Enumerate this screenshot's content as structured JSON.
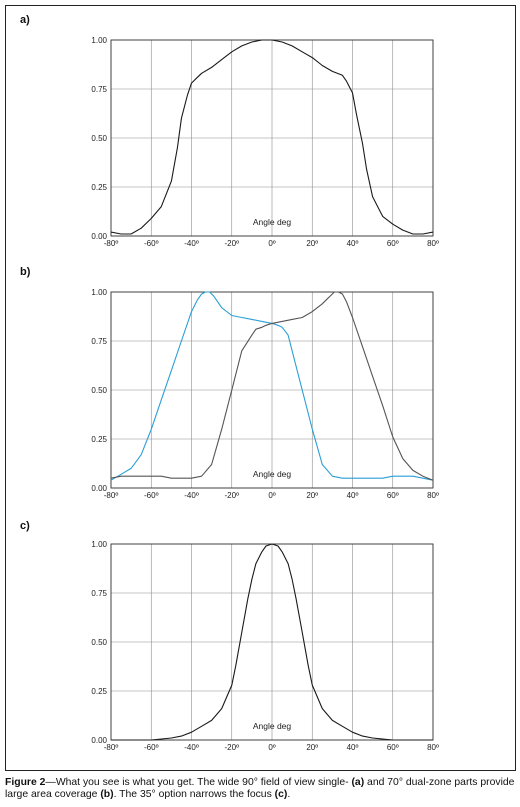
{
  "colors": {
    "grid": "#8c8c8c",
    "axis": "#333333",
    "black_series": "#1a1a1a",
    "gray_series": "#555555",
    "blue_series": "#2a9fd6"
  },
  "chart_data": [
    {
      "panel_label": "a)",
      "type": "line",
      "xlabel": "Angle deg",
      "xlim": [
        -80,
        80
      ],
      "ylim": [
        0,
        1
      ],
      "x_ticks": [
        "-80º",
        "-60º",
        "-40º",
        "-20º",
        "0º",
        "20º",
        "40º",
        "60º",
        "80º"
      ],
      "y_ticks": [
        "0.00",
        "0.25",
        "0.50",
        "0.75",
        "1.00"
      ],
      "grid": true,
      "series": [
        {
          "color": "black_series",
          "x": [
            -80,
            -75,
            -70,
            -65,
            -60,
            -55,
            -50,
            -47,
            -45,
            -42,
            -40,
            -37,
            -35,
            -30,
            -25,
            -20,
            -15,
            -10,
            -5,
            0,
            5,
            10,
            15,
            20,
            25,
            30,
            35,
            37,
            40,
            42,
            45,
            47,
            50,
            55,
            60,
            65,
            70,
            75,
            80
          ],
          "y": [
            0.02,
            0.01,
            0.01,
            0.04,
            0.09,
            0.15,
            0.28,
            0.45,
            0.6,
            0.72,
            0.78,
            0.81,
            0.83,
            0.86,
            0.9,
            0.94,
            0.97,
            0.99,
            1.0,
            1.0,
            0.99,
            0.97,
            0.94,
            0.91,
            0.87,
            0.84,
            0.82,
            0.79,
            0.73,
            0.62,
            0.47,
            0.34,
            0.2,
            0.1,
            0.06,
            0.03,
            0.01,
            0.01,
            0.02
          ]
        }
      ]
    },
    {
      "panel_label": "b)",
      "type": "line",
      "xlabel": "Angle deg",
      "xlim": [
        -80,
        80
      ],
      "ylim": [
        0,
        1
      ],
      "x_ticks": [
        "-80º",
        "-60º",
        "-40º",
        "-20º",
        "0º",
        "20º",
        "40º",
        "60º",
        "80º"
      ],
      "y_ticks": [
        "0.00",
        "0.25",
        "0.50",
        "0.75",
        "1.00"
      ],
      "grid": true,
      "series": [
        {
          "color": "blue_series",
          "x": [
            -80,
            -75,
            -70,
            -65,
            -60,
            -55,
            -50,
            -45,
            -40,
            -37,
            -35,
            -33,
            -31,
            -29,
            -27,
            -25,
            -20,
            -15,
            -10,
            -5,
            0,
            3,
            5,
            8,
            10,
            15,
            20,
            25,
            30,
            35,
            40,
            45,
            50,
            55,
            60,
            65,
            70,
            75,
            80
          ],
          "y": [
            0.04,
            0.07,
            0.1,
            0.17,
            0.3,
            0.45,
            0.6,
            0.75,
            0.9,
            0.96,
            0.99,
            1.0,
            1.0,
            0.98,
            0.95,
            0.92,
            0.88,
            0.87,
            0.86,
            0.85,
            0.84,
            0.83,
            0.82,
            0.78,
            0.7,
            0.5,
            0.3,
            0.12,
            0.06,
            0.05,
            0.05,
            0.05,
            0.05,
            0.05,
            0.06,
            0.06,
            0.06,
            0.05,
            0.04
          ]
        },
        {
          "color": "gray_series",
          "x": [
            -80,
            -75,
            -70,
            -65,
            -60,
            -55,
            -50,
            -45,
            -40,
            -35,
            -30,
            -25,
            -20,
            -15,
            -10,
            -8,
            -5,
            -3,
            0,
            5,
            10,
            15,
            20,
            25,
            27,
            29,
            31,
            33,
            35,
            37,
            40,
            45,
            50,
            55,
            60,
            65,
            70,
            75,
            80
          ],
          "y": [
            0.05,
            0.06,
            0.06,
            0.06,
            0.06,
            0.06,
            0.05,
            0.05,
            0.05,
            0.06,
            0.12,
            0.3,
            0.5,
            0.7,
            0.78,
            0.81,
            0.82,
            0.83,
            0.84,
            0.85,
            0.86,
            0.87,
            0.9,
            0.94,
            0.96,
            0.98,
            1.0,
            1.0,
            0.99,
            0.95,
            0.87,
            0.72,
            0.57,
            0.42,
            0.26,
            0.15,
            0.09,
            0.06,
            0.04
          ]
        }
      ]
    },
    {
      "panel_label": "c)",
      "type": "line",
      "xlabel": "Angle deg",
      "xlim": [
        -80,
        80
      ],
      "ylim": [
        0,
        1
      ],
      "x_ticks": [
        "-80º",
        "-60º",
        "-40º",
        "-20º",
        "0º",
        "20º",
        "40º",
        "60º",
        "80º"
      ],
      "y_ticks": [
        "0.00",
        "0.25",
        "0.50",
        "0.75",
        "1.00"
      ],
      "grid": true,
      "series": [
        {
          "color": "black_series",
          "x": [
            -80,
            -70,
            -60,
            -55,
            -50,
            -45,
            -40,
            -35,
            -30,
            -25,
            -20,
            -18,
            -15,
            -12,
            -10,
            -8,
            -5,
            -3,
            0,
            3,
            5,
            8,
            10,
            12,
            15,
            18,
            20,
            25,
            30,
            35,
            40,
            45,
            50,
            55,
            60,
            70,
            80
          ],
          "y": [
            0.0,
            0.0,
            0.0,
            0.005,
            0.01,
            0.02,
            0.04,
            0.07,
            0.1,
            0.16,
            0.28,
            0.38,
            0.55,
            0.72,
            0.82,
            0.9,
            0.96,
            0.99,
            1.0,
            0.99,
            0.96,
            0.9,
            0.82,
            0.72,
            0.55,
            0.38,
            0.28,
            0.16,
            0.1,
            0.07,
            0.04,
            0.02,
            0.01,
            0.005,
            0.0,
            0.0,
            0.0
          ]
        }
      ]
    }
  ],
  "caption": {
    "label": "Figure 2",
    "text1": "—What you see is what you get. The wide 90° field of view single- ",
    "ref_a": "(a)",
    "text2": " and 70° dual-zone parts provide large area coverage ",
    "ref_b": "(b)",
    "text3": ". The 35° option narrows the focus ",
    "ref_c": "(c)",
    "text4": "."
  }
}
